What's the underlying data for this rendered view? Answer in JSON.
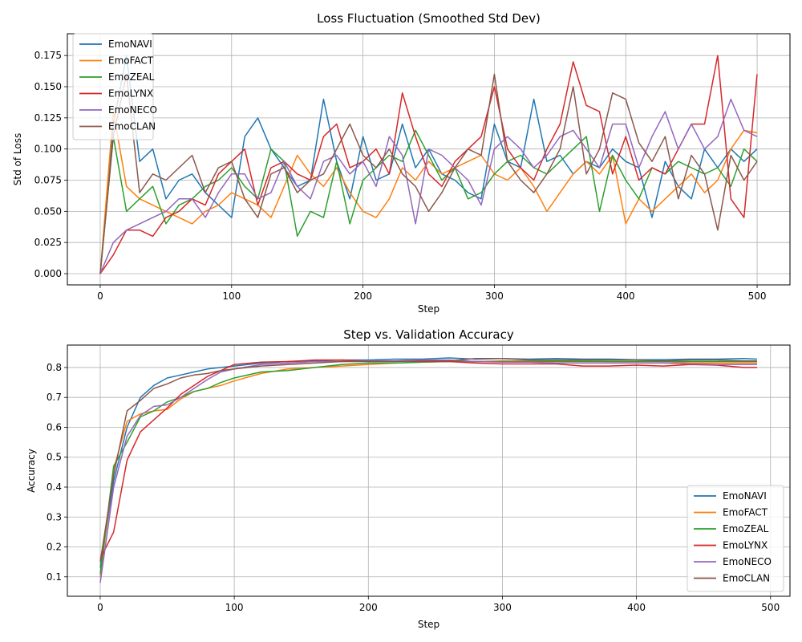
{
  "chart_data": [
    {
      "type": "line",
      "title": "Loss Fluctuation (Smoothed Std Dev)",
      "xlabel": "Step",
      "ylabel": "Std of Loss",
      "xlim": [
        -25,
        525
      ],
      "ylim": [
        -0.009,
        0.1925
      ],
      "xticks": [
        0,
        100,
        200,
        300,
        400,
        500
      ],
      "yticks": [
        0.0,
        0.025,
        0.05,
        0.075,
        0.1,
        0.125,
        0.15,
        0.175
      ],
      "ytick_labels": [
        "0.000",
        "0.025",
        "0.050",
        "0.075",
        "0.100",
        "0.125",
        "0.150",
        "0.175"
      ],
      "grid": true,
      "legend": "upper-left",
      "x": [
        0,
        10,
        20,
        30,
        40,
        50,
        60,
        70,
        80,
        90,
        100,
        110,
        120,
        130,
        140,
        150,
        160,
        170,
        180,
        190,
        200,
        210,
        220,
        230,
        240,
        250,
        260,
        270,
        280,
        290,
        300,
        310,
        320,
        330,
        340,
        350,
        360,
        370,
        380,
        390,
        400,
        410,
        420,
        430,
        440,
        450,
        460,
        470,
        480,
        490,
        500
      ],
      "series": [
        {
          "name": "EmoNAVI",
          "color": "#1f77b4",
          "values": [
            0.0,
            0.12,
            0.175,
            0.09,
            0.1,
            0.06,
            0.075,
            0.08,
            0.065,
            0.055,
            0.045,
            0.11,
            0.125,
            0.1,
            0.085,
            0.07,
            0.075,
            0.14,
            0.09,
            0.06,
            0.11,
            0.075,
            0.08,
            0.12,
            0.085,
            0.1,
            0.08,
            0.075,
            0.065,
            0.06,
            0.12,
            0.09,
            0.085,
            0.14,
            0.09,
            0.095,
            0.08,
            0.09,
            0.085,
            0.1,
            0.09,
            0.085,
            0.045,
            0.09,
            0.07,
            0.06,
            0.1,
            0.085,
            0.1,
            0.09,
            0.1
          ]
        },
        {
          "name": "EmoFACT",
          "color": "#ff7f0e",
          "values": [
            0.0,
            0.13,
            0.07,
            0.06,
            0.055,
            0.05,
            0.045,
            0.04,
            0.05,
            0.055,
            0.065,
            0.06,
            0.055,
            0.045,
            0.07,
            0.095,
            0.08,
            0.07,
            0.085,
            0.065,
            0.05,
            0.045,
            0.06,
            0.085,
            0.075,
            0.09,
            0.08,
            0.085,
            0.09,
            0.095,
            0.08,
            0.075,
            0.085,
            0.07,
            0.05,
            0.065,
            0.08,
            0.09,
            0.08,
            0.095,
            0.04,
            0.06,
            0.05,
            0.06,
            0.07,
            0.08,
            0.065,
            0.075,
            0.1,
            0.115,
            0.113
          ]
        },
        {
          "name": "EmoZEAL",
          "color": "#2ca02c",
          "values": [
            0.0,
            0.11,
            0.05,
            0.06,
            0.07,
            0.04,
            0.055,
            0.06,
            0.07,
            0.075,
            0.085,
            0.07,
            0.06,
            0.1,
            0.09,
            0.03,
            0.05,
            0.045,
            0.09,
            0.04,
            0.075,
            0.085,
            0.095,
            0.09,
            0.115,
            0.095,
            0.075,
            0.085,
            0.06,
            0.065,
            0.08,
            0.09,
            0.095,
            0.085,
            0.08,
            0.09,
            0.1,
            0.11,
            0.05,
            0.095,
            0.075,
            0.06,
            0.085,
            0.08,
            0.09,
            0.085,
            0.08,
            0.085,
            0.07,
            0.1,
            0.09
          ]
        },
        {
          "name": "EmoLYNX",
          "color": "#d62728",
          "values": [
            0.0,
            0.015,
            0.035,
            0.035,
            0.03,
            0.045,
            0.05,
            0.06,
            0.055,
            0.08,
            0.09,
            0.1,
            0.055,
            0.085,
            0.09,
            0.08,
            0.075,
            0.11,
            0.12,
            0.085,
            0.09,
            0.1,
            0.08,
            0.145,
            0.11,
            0.08,
            0.07,
            0.09,
            0.1,
            0.11,
            0.15,
            0.1,
            0.085,
            0.075,
            0.1,
            0.12,
            0.17,
            0.135,
            0.13,
            0.08,
            0.11,
            0.075,
            0.085,
            0.08,
            0.1,
            0.12,
            0.12,
            0.175,
            0.06,
            0.045,
            0.16
          ]
        },
        {
          "name": "EmoNECO",
          "color": "#9467bd",
          "values": [
            0.0,
            0.025,
            0.035,
            0.04,
            0.045,
            0.05,
            0.06,
            0.06,
            0.045,
            0.065,
            0.08,
            0.08,
            0.06,
            0.065,
            0.09,
            0.07,
            0.06,
            0.09,
            0.095,
            0.08,
            0.09,
            0.07,
            0.11,
            0.095,
            0.04,
            0.1,
            0.095,
            0.085,
            0.075,
            0.055,
            0.1,
            0.11,
            0.1,
            0.085,
            0.095,
            0.11,
            0.115,
            0.1,
            0.085,
            0.12,
            0.12,
            0.085,
            0.11,
            0.13,
            0.1,
            0.12,
            0.1,
            0.11,
            0.14,
            0.115,
            0.11
          ]
        },
        {
          "name": "EmoCLAN",
          "color": "#8c564b",
          "values": [
            0.0,
            0.11,
            0.16,
            0.065,
            0.08,
            0.075,
            0.085,
            0.095,
            0.065,
            0.085,
            0.09,
            0.06,
            0.045,
            0.08,
            0.085,
            0.065,
            0.075,
            0.08,
            0.1,
            0.12,
            0.095,
            0.085,
            0.1,
            0.08,
            0.07,
            0.05,
            0.065,
            0.085,
            0.1,
            0.095,
            0.16,
            0.09,
            0.075,
            0.065,
            0.08,
            0.1,
            0.15,
            0.08,
            0.1,
            0.145,
            0.14,
            0.105,
            0.09,
            0.11,
            0.06,
            0.095,
            0.08,
            0.035,
            0.095,
            0.075,
            0.09
          ]
        }
      ]
    },
    {
      "type": "line",
      "title": "Step vs. Validation Accuracy",
      "xlabel": "Step",
      "ylabel": "Accuracy",
      "xlim": [
        -24.5,
        514.5
      ],
      "ylim": [
        0.035,
        0.875
      ],
      "xticks": [
        0,
        100,
        200,
        300,
        400,
        500
      ],
      "yticks": [
        0.1,
        0.2,
        0.3,
        0.4,
        0.5,
        0.6,
        0.7,
        0.8
      ],
      "ytick_labels": [
        "0.1",
        "0.2",
        "0.3",
        "0.4",
        "0.5",
        "0.6",
        "0.7",
        "0.8"
      ],
      "grid": true,
      "legend": "lower-right",
      "x": [
        0,
        10,
        20,
        30,
        40,
        50,
        60,
        70,
        80,
        90,
        100,
        120,
        140,
        160,
        180,
        200,
        220,
        240,
        260,
        280,
        300,
        320,
        340,
        360,
        380,
        400,
        420,
        440,
        460,
        480,
        490
      ],
      "series": [
        {
          "name": "EmoNAVI",
          "color": "#1f77b4",
          "values": [
            0.13,
            0.42,
            0.6,
            0.7,
            0.74,
            0.765,
            0.775,
            0.785,
            0.795,
            0.8,
            0.805,
            0.815,
            0.82,
            0.822,
            0.825,
            0.825,
            0.828,
            0.828,
            0.832,
            0.828,
            0.83,
            0.828,
            0.83,
            0.828,
            0.828,
            0.826,
            0.826,
            0.828,
            0.828,
            0.83,
            0.828
          ]
        },
        {
          "name": "EmoFACT",
          "color": "#ff7f0e",
          "values": [
            0.1,
            0.46,
            0.62,
            0.645,
            0.655,
            0.66,
            0.695,
            0.72,
            0.73,
            0.74,
            0.755,
            0.78,
            0.795,
            0.8,
            0.805,
            0.81,
            0.815,
            0.818,
            0.82,
            0.82,
            0.822,
            0.822,
            0.822,
            0.822,
            0.82,
            0.82,
            0.82,
            0.815,
            0.815,
            0.815,
            0.815
          ]
        },
        {
          "name": "EmoZEAL",
          "color": "#2ca02c",
          "values": [
            0.11,
            0.47,
            0.55,
            0.635,
            0.655,
            0.685,
            0.7,
            0.72,
            0.73,
            0.75,
            0.765,
            0.785,
            0.79,
            0.8,
            0.81,
            0.815,
            0.815,
            0.818,
            0.82,
            0.82,
            0.82,
            0.82,
            0.82,
            0.82,
            0.82,
            0.82,
            0.82,
            0.82,
            0.82,
            0.82,
            0.82
          ]
        },
        {
          "name": "EmoLYNX",
          "color": "#d62728",
          "values": [
            0.16,
            0.25,
            0.49,
            0.585,
            0.625,
            0.665,
            0.71,
            0.74,
            0.77,
            0.79,
            0.81,
            0.818,
            0.82,
            0.825,
            0.825,
            0.822,
            0.822,
            0.82,
            0.82,
            0.815,
            0.812,
            0.812,
            0.812,
            0.805,
            0.805,
            0.808,
            0.805,
            0.81,
            0.808,
            0.8,
            0.8
          ]
        },
        {
          "name": "EmoNECO",
          "color": "#9467bd",
          "values": [
            0.08,
            0.4,
            0.57,
            0.64,
            0.67,
            0.675,
            0.7,
            0.73,
            0.76,
            0.785,
            0.795,
            0.81,
            0.815,
            0.82,
            0.82,
            0.822,
            0.822,
            0.825,
            0.825,
            0.82,
            0.818,
            0.818,
            0.815,
            0.815,
            0.815,
            0.815,
            0.815,
            0.812,
            0.81,
            0.81,
            0.81
          ]
        },
        {
          "name": "EmoCLAN",
          "color": "#8c564b",
          "values": [
            0.15,
            0.44,
            0.655,
            0.69,
            0.73,
            0.745,
            0.765,
            0.775,
            0.78,
            0.79,
            0.795,
            0.805,
            0.81,
            0.815,
            0.82,
            0.82,
            0.82,
            0.822,
            0.822,
            0.83,
            0.83,
            0.825,
            0.825,
            0.825,
            0.825,
            0.825,
            0.822,
            0.825,
            0.825,
            0.822,
            0.822
          ]
        }
      ]
    }
  ]
}
